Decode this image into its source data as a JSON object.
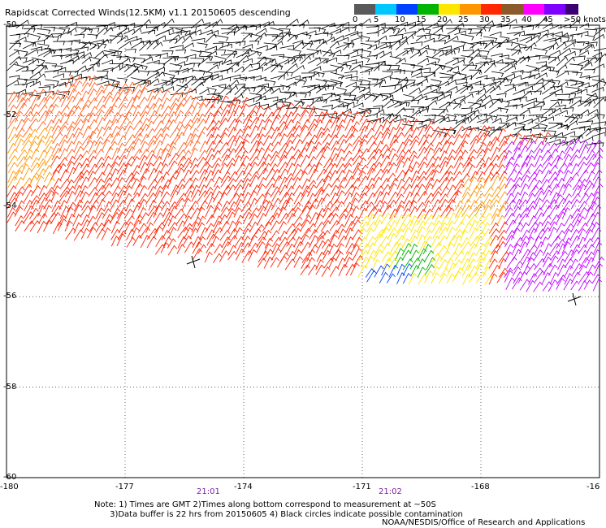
{
  "title": "Rapidscat Corrected Winds(12.5KM) v1.1 20150605 descending",
  "legend": {
    "entries": [
      {
        "label": "0",
        "color": "#5a5a5a"
      },
      {
        "label": "5",
        "color": "#00c8ff"
      },
      {
        "label": "10",
        "color": "#0040ff"
      },
      {
        "label": "15",
        "color": "#00b400"
      },
      {
        "label": "20",
        "color": "#ffe600"
      },
      {
        "label": "25",
        "color": "#ff9600"
      },
      {
        "label": "30",
        "color": "#ff2800"
      },
      {
        "label": "35",
        "color": "#8b5a2b"
      },
      {
        "label": "40",
        "color": "#ff00ff"
      },
      {
        "label": "45",
        "color": "#8000ff"
      },
      {
        "label": ">50 knots",
        "color": "#3c0070"
      }
    ]
  },
  "axes": {
    "y_labels": [
      "-50",
      "-52",
      "-54",
      "-56",
      "-58",
      "-60"
    ],
    "x_labels": [
      "-180",
      "-177",
      "-174",
      "-171",
      "-168",
      "-16"
    ]
  },
  "time_labels": [
    "21:01",
    "21:02"
  ],
  "notes_line1": "Note: 1) Times are GMT 2)Times along bottom correspond to measurement at ~50S",
  "notes_line2": "3)Data buffer is 22 hrs from 20150605 4) Black circles indicate possible contamination",
  "credit": "NOAA/NESDIS/Office of Research and Applications",
  "map": {
    "lat_range": [
      -60,
      -50
    ],
    "lon_range": [
      -180,
      -165
    ],
    "wind_field": "wind barbs, mostly westerly; black north of ~-52.5, red/orange south, yellow/green/blue near -170, purple near -166"
  }
}
